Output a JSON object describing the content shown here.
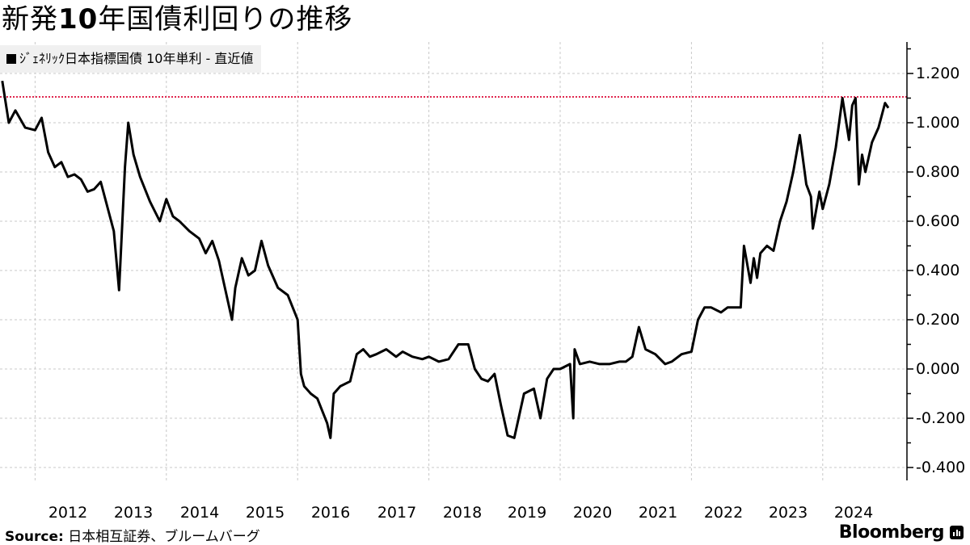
{
  "title": {
    "prefix": "新発",
    "bold": "10",
    "suffix": "年国債利回りの推移"
  },
  "legend": {
    "label": "ｼﾞｪﾈﾘｯｸ日本指標国債 10年単利 - 直近値",
    "color": "#000000"
  },
  "source": {
    "label": "Source:",
    "text": "日本相互証券、ブルームバーグ"
  },
  "brand": {
    "name": "Bloomberg"
  },
  "chart_data": {
    "type": "line",
    "title": "新発10年国債利回りの推移",
    "series_name": "ｼﾞｪﾈﾘｯｸ日本指標国債 10年単利 - 直近値",
    "xlabel": "",
    "ylabel": "",
    "ylim": [
      -0.45,
      1.33
    ],
    "yticks": [
      "1.200",
      "1.000",
      "0.800",
      "0.600",
      "0.400",
      "0.200",
      "0.000",
      "-0.200",
      "-0.400"
    ],
    "xticks": [
      "2012",
      "2013",
      "2014",
      "2015",
      "2016",
      "2017",
      "2018",
      "2019",
      "2020",
      "2021",
      "2022",
      "2023",
      "2024"
    ],
    "grid": true,
    "reference_line": {
      "value": 1.105,
      "color": "#e0284f",
      "style": "dotted"
    },
    "line_color": "#000000",
    "x": [
      2011.5,
      2011.6,
      2011.7,
      2011.85,
      2012.0,
      2012.1,
      2012.2,
      2012.3,
      2012.4,
      2012.5,
      2012.6,
      2012.7,
      2012.8,
      2012.9,
      2013.0,
      2013.1,
      2013.2,
      2013.28,
      2013.33,
      2013.37,
      2013.42,
      2013.5,
      2013.6,
      2013.75,
      2013.9,
      2014.0,
      2014.1,
      2014.2,
      2014.35,
      2014.5,
      2014.6,
      2014.7,
      2014.8,
      2014.9,
      2015.0,
      2015.05,
      2015.15,
      2015.25,
      2015.35,
      2015.45,
      2015.55,
      2015.7,
      2015.85,
      2016.0,
      2016.05,
      2016.1,
      2016.2,
      2016.3,
      2016.45,
      2016.5,
      2016.55,
      2016.65,
      2016.8,
      2016.9,
      2017.0,
      2017.1,
      2017.2,
      2017.35,
      2017.5,
      2017.6,
      2017.75,
      2017.9,
      2018.0,
      2018.15,
      2018.3,
      2018.45,
      2018.6,
      2018.7,
      2018.8,
      2018.9,
      2019.0,
      2019.1,
      2019.2,
      2019.3,
      2019.45,
      2019.6,
      2019.7,
      2019.8,
      2019.9,
      2020.0,
      2020.15,
      2020.2,
      2020.22,
      2020.3,
      2020.45,
      2020.6,
      2020.75,
      2020.9,
      2021.0,
      2021.1,
      2021.2,
      2021.3,
      2021.45,
      2021.6,
      2021.7,
      2021.85,
      2022.0,
      2022.1,
      2022.2,
      2022.3,
      2022.45,
      2022.55,
      2022.65,
      2022.75,
      2022.8,
      2022.9,
      2022.95,
      2023.0,
      2023.05,
      2023.15,
      2023.25,
      2023.35,
      2023.45,
      2023.55,
      2023.65,
      2023.75,
      2023.82,
      2023.85,
      2023.95,
      2024.0,
      2024.1,
      2024.2,
      2024.3,
      2024.4,
      2024.45,
      2024.5,
      2024.55,
      2024.6,
      2024.65,
      2024.75,
      2024.85,
      2024.95,
      2025.0
    ],
    "values": [
      1.17,
      1.0,
      1.05,
      0.98,
      0.97,
      1.02,
      0.88,
      0.82,
      0.84,
      0.78,
      0.79,
      0.77,
      0.72,
      0.73,
      0.76,
      0.66,
      0.56,
      0.32,
      0.6,
      0.82,
      1.0,
      0.87,
      0.78,
      0.68,
      0.6,
      0.69,
      0.62,
      0.6,
      0.56,
      0.53,
      0.47,
      0.52,
      0.44,
      0.32,
      0.2,
      0.33,
      0.45,
      0.38,
      0.4,
      0.52,
      0.42,
      0.33,
      0.3,
      0.2,
      -0.02,
      -0.07,
      -0.1,
      -0.12,
      -0.22,
      -0.28,
      -0.1,
      -0.07,
      -0.05,
      0.06,
      0.08,
      0.05,
      0.06,
      0.08,
      0.05,
      0.07,
      0.05,
      0.04,
      0.05,
      0.03,
      0.04,
      0.1,
      0.1,
      0.0,
      -0.04,
      -0.05,
      -0.02,
      -0.15,
      -0.27,
      -0.28,
      -0.1,
      -0.08,
      -0.2,
      -0.04,
      0.0,
      0.0,
      0.02,
      -0.2,
      0.08,
      0.02,
      0.03,
      0.02,
      0.02,
      0.03,
      0.03,
      0.05,
      0.17,
      0.08,
      0.06,
      0.02,
      0.03,
      0.06,
      0.07,
      0.2,
      0.25,
      0.25,
      0.23,
      0.25,
      0.25,
      0.25,
      0.5,
      0.35,
      0.45,
      0.37,
      0.47,
      0.5,
      0.48,
      0.6,
      0.68,
      0.8,
      0.95,
      0.75,
      0.7,
      0.57,
      0.72,
      0.65,
      0.75,
      0.9,
      1.1,
      0.93,
      1.07,
      1.1,
      0.75,
      0.87,
      0.8,
      0.92,
      0.98,
      1.08,
      1.06
    ]
  },
  "axis": {
    "y_labels": [
      "1.200",
      "1.000",
      "0.800",
      "0.600",
      "0.400",
      "0.200",
      "0.000",
      "-0.200",
      "-0.400"
    ],
    "x_labels": [
      "2012",
      "2013",
      "2014",
      "2015",
      "2016",
      "2017",
      "2018",
      "2019",
      "2020",
      "2021",
      "2022",
      "2023",
      "2024"
    ]
  }
}
